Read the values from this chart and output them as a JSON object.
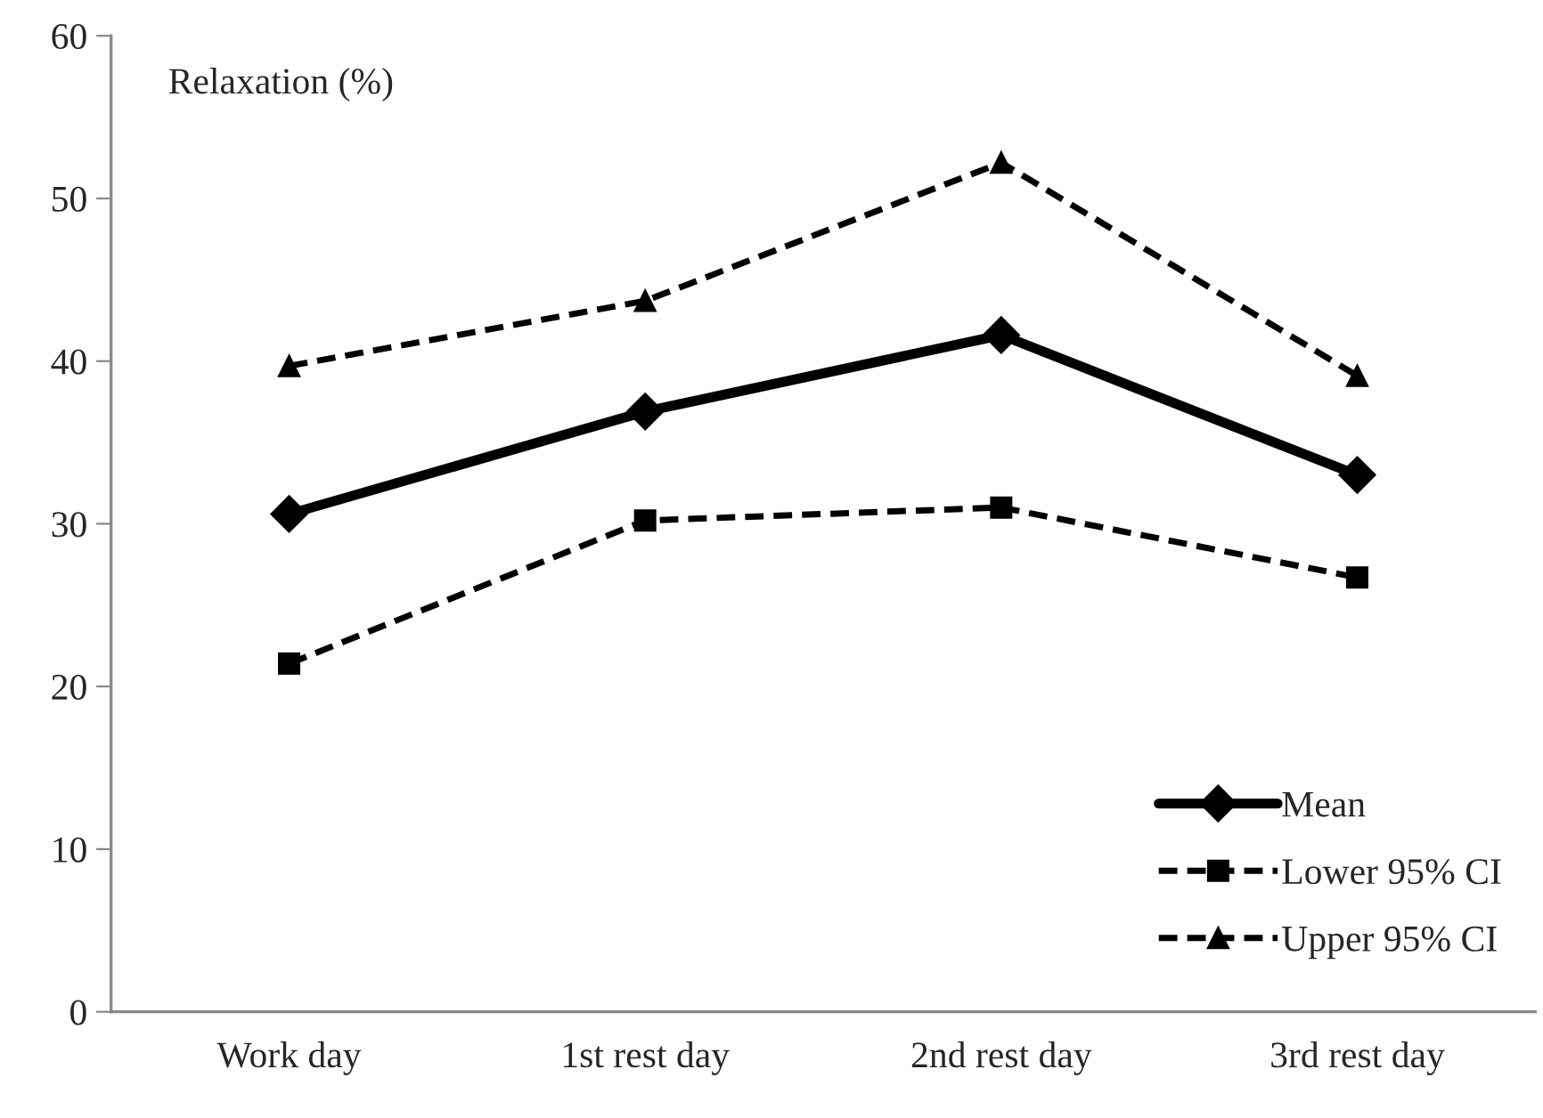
{
  "chart_data": {
    "type": "line",
    "ylabel": "Relaxation (%)",
    "categories": [
      "Work day",
      "1st rest day",
      "2nd rest day",
      "3rd rest day"
    ],
    "series": [
      {
        "name": "Mean",
        "color": "#000000",
        "values": [
          30.6,
          36.9,
          41.6,
          33.0
        ],
        "marker": "diamond",
        "line_style": "solid"
      },
      {
        "name": "Lower 95% CI",
        "color": "#000000",
        "values": [
          21.4,
          30.2,
          31.0,
          26.7
        ],
        "marker": "square",
        "line_style": "dashed"
      },
      {
        "name": "Upper 95% CI",
        "color": "#000000",
        "values": [
          39.7,
          43.7,
          52.2,
          39.1
        ],
        "marker": "triangle",
        "line_style": "dashed"
      }
    ],
    "ylim": [
      0,
      60
    ],
    "yticks": [
      0,
      10,
      20,
      30,
      40,
      50,
      60
    ],
    "grid": false,
    "legend": "bottom right"
  }
}
